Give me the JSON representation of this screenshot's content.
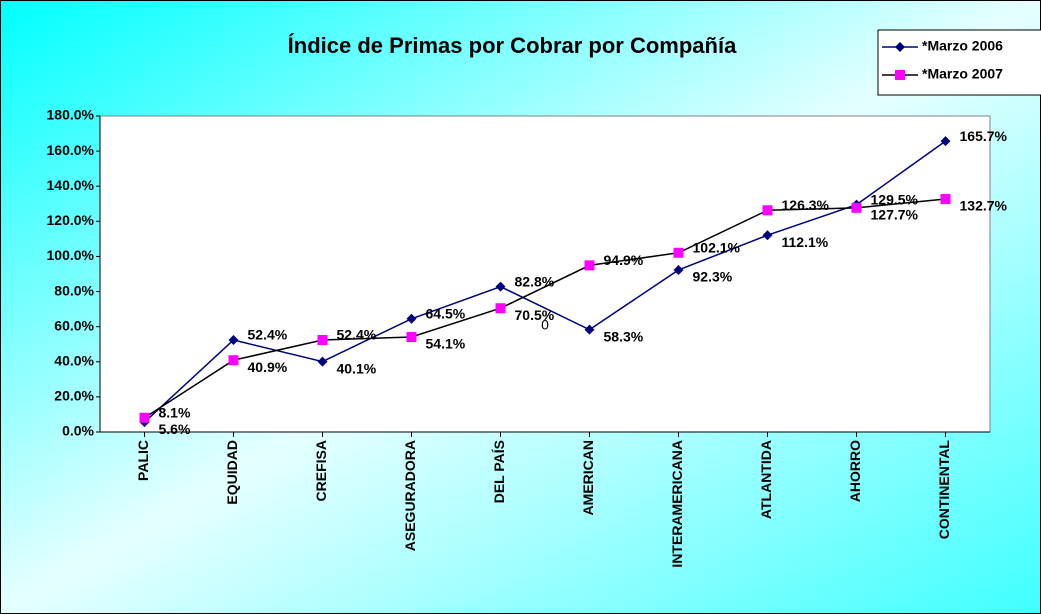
{
  "chart_data": {
    "type": "line",
    "title": "Índice de Primas por Cobrar por Compañía",
    "categories": [
      "PALIC",
      "EQUIDAD",
      "CREFISA",
      "ASEGURADORA",
      "DEL PAÍS",
      "AMERICAN",
      "INTERAMERICANA",
      "ATLANTIDA",
      "AHORRO",
      "CONTINENTAL"
    ],
    "series": [
      {
        "name": "*Marzo 2006",
        "color": "#000080",
        "line_color": "#000080",
        "marker": "diamond",
        "values": [
          5.6,
          52.4,
          40.1,
          64.5,
          82.8,
          58.3,
          92.3,
          112.1,
          129.5,
          165.7
        ],
        "value_labels": [
          "5.6%",
          "52.4%",
          "40.1%",
          "64.5%",
          "82.8%",
          "58.3%",
          "92.3%",
          "112.1%",
          "129.5%",
          "165.7%"
        ]
      },
      {
        "name": "*Marzo 2007",
        "color": "#ff00ff",
        "line_color": "#000000",
        "marker": "square",
        "values": [
          8.1,
          40.9,
          52.4,
          54.1,
          70.5,
          94.9,
          102.1,
          126.3,
          127.7,
          132.7
        ],
        "value_labels": [
          "8.1%",
          "40.9%",
          "52.4%",
          "54.1%",
          "70.5%",
          "94.9%",
          "102.1%",
          "126.3%",
          "127.7%",
          "132.7%"
        ]
      }
    ],
    "annotation": "0",
    "ylim": [
      0,
      180
    ],
    "yticks": [
      {
        "value": 0,
        "label": "0.0%"
      },
      {
        "value": 20,
        "label": "20.0%"
      },
      {
        "value": 40,
        "label": "40.0%"
      },
      {
        "value": 60,
        "label": "60.0%"
      },
      {
        "value": 80,
        "label": "80.0%"
      },
      {
        "value": 100,
        "label": "100.0%"
      },
      {
        "value": 120,
        "label": "120.0%"
      },
      {
        "value": 140,
        "label": "140.0%"
      },
      {
        "value": 160,
        "label": "160.0%"
      },
      {
        "value": 180,
        "label": "180.0%"
      }
    ],
    "legend": "top-right"
  }
}
